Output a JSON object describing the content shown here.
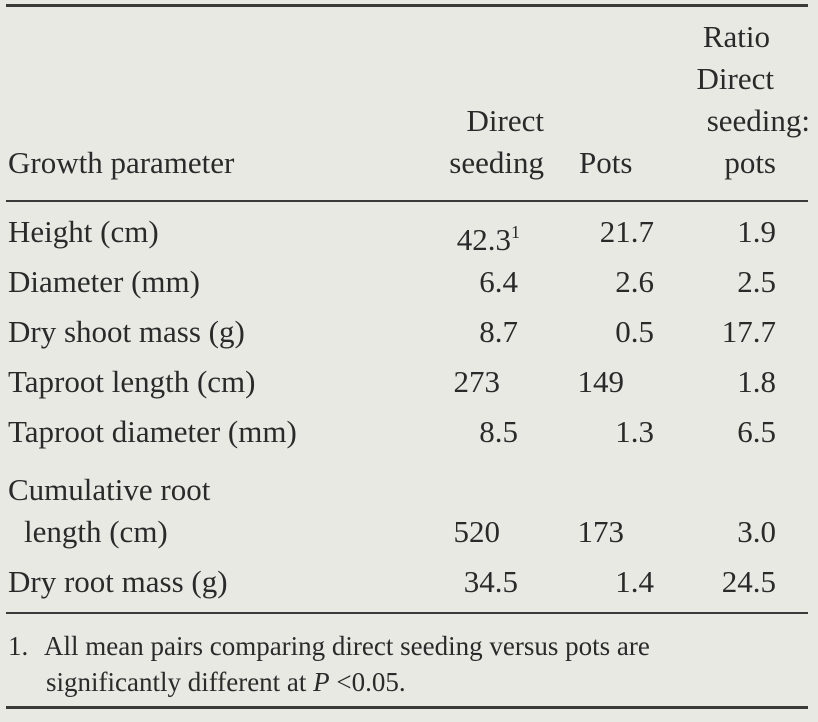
{
  "header": {
    "growth_parameter": "Growth parameter",
    "direct_line1": "Direct",
    "direct_line2": "seeding",
    "pots": "Pots",
    "ratio_line1": "Ratio",
    "ratio_line2": "Direct",
    "ratio_line3": "seeding:",
    "ratio_line4": "pots"
  },
  "rows": [
    {
      "label": "Height (cm)",
      "direct": "42.3",
      "direct_note": "1",
      "pots": "21.7",
      "ratio": "1.9"
    },
    {
      "label": "Diameter (mm)",
      "direct": "6.4",
      "pots": "2.6",
      "ratio": "2.5"
    },
    {
      "label": "Dry shoot mass (g)",
      "direct": "8.7",
      "pots": "0.5",
      "ratio": "17.7"
    },
    {
      "label": "Taproot length (cm)",
      "direct": "273",
      "pots": "149",
      "ratio": "1.8"
    },
    {
      "label": "Taproot diameter (mm)",
      "direct": "8.5",
      "pots": "1.3",
      "ratio": "6.5"
    },
    {
      "label_line1": "Cumulative root",
      "label_line2": "length (cm)",
      "direct": "520",
      "pots": "173",
      "ratio": "3.0"
    },
    {
      "label": "Dry root mass (g)",
      "direct": "34.5",
      "pots": "1.4",
      "ratio": "24.5"
    }
  ],
  "footnote": {
    "number": "1.",
    "line1": "All mean pairs comparing direct seeding versus pots are",
    "line2_pre": "significantly different at ",
    "line2_var": "P",
    "line2_post": " <0.05."
  }
}
